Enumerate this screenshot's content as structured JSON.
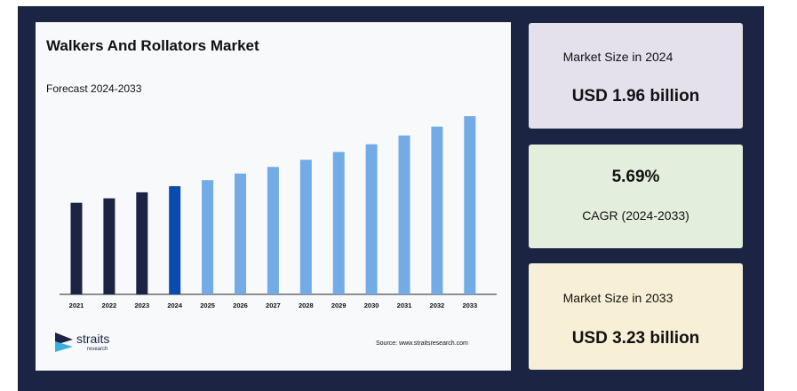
{
  "chart_data": {
    "type": "bar",
    "title": "Walkers And Rollators Market",
    "subtitle": "Forecast 2024-2033",
    "categories": [
      "2021",
      "2022",
      "2023",
      "2024",
      "2025",
      "2026",
      "2027",
      "2028",
      "2029",
      "2030",
      "2031",
      "2032",
      "2033"
    ],
    "values": [
      1.66,
      1.74,
      1.85,
      1.96,
      2.07,
      2.19,
      2.31,
      2.44,
      2.58,
      2.72,
      2.88,
      3.04,
      3.23
    ],
    "bar_colors": [
      "#1b2543",
      "#1b2543",
      "#1b2543",
      "#0a4bb0",
      "#72abe6",
      "#72abe6",
      "#72abe6",
      "#72abe6",
      "#72abe6",
      "#72abe6",
      "#72abe6",
      "#72abe6",
      "#72abe6"
    ],
    "xlabel": "",
    "ylabel": "",
    "grid": false,
    "legend": "none"
  },
  "branding": {
    "logo_word": "straits",
    "logo_sub": "research",
    "source": "Source: www.straitsresearch.com"
  },
  "stats": {
    "size_2024": {
      "label": "Market Size in 2024",
      "value": "USD 1.96 billion"
    },
    "cagr": {
      "value": "5.69%",
      "label": "CAGR (2024-2033)"
    },
    "size_2033": {
      "label": "Market Size in 2033",
      "value": "USD 3.23 billion"
    }
  },
  "colors": {
    "frame": "#1b2543",
    "card_2024": "#e4e0ec",
    "card_cagr": "#e3eedc",
    "card_2033": "#f7f0d6",
    "bar_historic": "#1b2543",
    "bar_base_year": "#0a4bb0",
    "bar_forecast": "#72abe6"
  }
}
